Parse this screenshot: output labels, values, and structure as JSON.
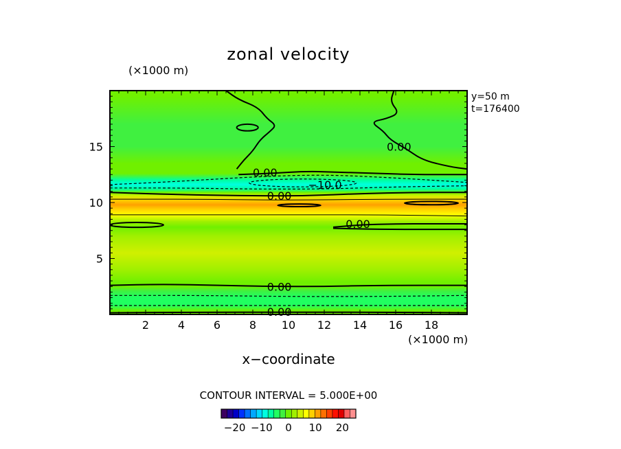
{
  "chart_data": {
    "type": "heatmap",
    "title": "zonal velocity",
    "xlabel": "x−coordinate",
    "x_unit_label": "(×1000 m)",
    "y_unit_label": "(×1000 m)",
    "xlim": [
      0,
      20
    ],
    "ylim": [
      0,
      20
    ],
    "x_ticks": [
      2,
      4,
      6,
      8,
      10,
      12,
      14,
      16,
      18
    ],
    "y_ticks": [
      5,
      10,
      15
    ],
    "annotations": [
      "y=50 m",
      "t=176400"
    ],
    "contour_interval_text": "CONTOUR INTERVAL = 5.000E+00",
    "colorbar": {
      "range": [
        -25,
        25
      ],
      "tick_values": [
        -20,
        -10,
        0,
        10,
        20
      ],
      "tick_labels": [
        "−20",
        "−10",
        "0",
        "10",
        "20"
      ],
      "colors": [
        "#3d0060",
        "#1e0096",
        "#0000c8",
        "#0032ff",
        "#0070ff",
        "#00a8ff",
        "#00d8ff",
        "#00ffe0",
        "#00ffa0",
        "#20ff60",
        "#40f040",
        "#70f000",
        "#a0f000",
        "#d0f000",
        "#ffff00",
        "#ffd000",
        "#ffa000",
        "#ff7000",
        "#ff4000",
        "#ff1000",
        "#e00000",
        "#ff6060",
        "#ff9090"
      ]
    },
    "field_rows": [
      {
        "y": 19.5,
        "value": -1.0
      },
      {
        "y": 17.0,
        "value": -1.5
      },
      {
        "y": 15.0,
        "value": -1.5
      },
      {
        "y": 13.5,
        "value": -1.0
      },
      {
        "y": 12.6,
        "value": 0.5
      },
      {
        "y": 12.0,
        "value": -6.0
      },
      {
        "y": 11.6,
        "value": -9.0
      },
      {
        "y": 11.2,
        "value": -6.0
      },
      {
        "y": 10.9,
        "value": 0.0
      },
      {
        "y": 10.6,
        "value": 5.0
      },
      {
        "y": 10.2,
        "value": 9.0
      },
      {
        "y": 9.8,
        "value": 10.0
      },
      {
        "y": 9.4,
        "value": 8.5
      },
      {
        "y": 8.9,
        "value": 6.0
      },
      {
        "y": 8.3,
        "value": 3.0
      },
      {
        "y": 7.8,
        "value": 0.0
      },
      {
        "y": 7.0,
        "value": 2.5
      },
      {
        "y": 5.5,
        "value": 3.5
      },
      {
        "y": 4.0,
        "value": 3.0
      },
      {
        "y": 2.9,
        "value": 1.0
      },
      {
        "y": 2.5,
        "value": -0.5
      },
      {
        "y": 2.1,
        "value": -2.0
      },
      {
        "y": 1.6,
        "value": -4.0
      },
      {
        "y": 1.2,
        "value": -5.0
      },
      {
        "y": 0.8,
        "value": -3.5
      },
      {
        "y": 0.3,
        "value": 1.0
      }
    ],
    "contours": [
      {
        "value": 0,
        "style": "solid",
        "label": "0.00",
        "label_at": [
          8,
          12.7
        ],
        "points": [
          [
            7.2,
            12.5
          ],
          [
            9,
            12.6
          ],
          [
            11,
            12.8
          ],
          [
            13,
            12.7
          ],
          [
            15,
            12.6
          ],
          [
            17,
            12.5
          ],
          [
            20,
            12.5
          ]
        ]
      },
      {
        "value": 0,
        "style": "solid",
        "label": "0.00",
        "label_at": [
          8.8,
          10.6
        ],
        "points": [
          [
            0,
            10.9
          ],
          [
            4,
            10.7
          ],
          [
            8,
            10.6
          ],
          [
            11,
            10.6
          ],
          [
            14,
            10.8
          ],
          [
            17,
            10.9
          ],
          [
            20,
            10.9
          ]
        ]
      },
      {
        "value": 0,
        "style": "solid",
        "label": "0.00",
        "label_at": [
          13.2,
          8.1
        ],
        "points": [
          [
            12.5,
            7.8
          ],
          [
            14,
            8.0
          ],
          [
            16,
            8.1
          ],
          [
            18,
            8.1
          ],
          [
            20,
            8.1
          ]
        ]
      },
      {
        "value": 0,
        "style": "solid",
        "label": null,
        "label_at": null,
        "points": [
          [
            12.5,
            7.7
          ],
          [
            15,
            7.6
          ],
          [
            18,
            7.6
          ],
          [
            20,
            7.6
          ]
        ]
      },
      {
        "value": 0,
        "style": "solid",
        "label": "0.00",
        "label_at": [
          8.8,
          2.5
        ],
        "points": [
          [
            0,
            2.6
          ],
          [
            3,
            2.7
          ],
          [
            6,
            2.6
          ],
          [
            9,
            2.5
          ],
          [
            12,
            2.5
          ],
          [
            15,
            2.6
          ],
          [
            20,
            2.6
          ]
        ]
      },
      {
        "value": 0,
        "style": "solid",
        "label": "0.00",
        "label_at": [
          8.8,
          0.25
        ],
        "points": [
          [
            0,
            0.15
          ],
          [
            5,
            0.2
          ],
          [
            10,
            0.2
          ],
          [
            15,
            0.2
          ],
          [
            20,
            0.15
          ]
        ]
      },
      {
        "value": 0,
        "style": "solid",
        "label": "0.00",
        "label_at": [
          15.5,
          15.0
        ],
        "points": [
          [
            15.9,
            20
          ],
          [
            15.7,
            19
          ],
          [
            16.2,
            18
          ],
          [
            15.5,
            17.5
          ],
          [
            14.6,
            17.2
          ],
          [
            15.3,
            16.4
          ],
          [
            15.7,
            15.6
          ],
          [
            16.6,
            14.8
          ],
          [
            17.5,
            13.8
          ],
          [
            19,
            13.2
          ],
          [
            20,
            13
          ]
        ]
      },
      {
        "value": 0,
        "style": "solid",
        "label": null,
        "label_at": null,
        "points": [
          [
            6.5,
            20
          ],
          [
            7.2,
            19.2
          ],
          [
            8.3,
            18.5
          ],
          [
            8.8,
            17.5
          ],
          [
            9.3,
            16.9
          ],
          [
            9.0,
            16.4
          ],
          [
            8.4,
            15.6
          ],
          [
            8.0,
            14.6
          ],
          [
            7.5,
            13.8
          ],
          [
            7.1,
            13
          ]
        ]
      },
      {
        "value": -5,
        "style": "dashed",
        "label": null,
        "label_at": null,
        "points": [
          [
            0,
            11.6
          ],
          [
            4,
            11.9
          ],
          [
            8,
            12.3
          ],
          [
            12,
            12.5
          ],
          [
            16,
            12.2
          ],
          [
            20,
            11.8
          ]
        ]
      },
      {
        "value": -5,
        "style": "dashed",
        "label": null,
        "label_at": null,
        "points": [
          [
            0,
            11.3
          ],
          [
            4,
            11.3
          ],
          [
            8,
            11.2
          ],
          [
            12,
            11.2
          ],
          [
            16,
            11.4
          ],
          [
            20,
            11.5
          ]
        ]
      },
      {
        "value": -5,
        "style": "dashed",
        "label": null,
        "label_at": null,
        "points": [
          [
            0,
            1.7
          ],
          [
            5,
            1.7
          ],
          [
            10,
            1.6
          ],
          [
            15,
            1.6
          ],
          [
            20,
            1.7
          ]
        ]
      },
      {
        "value": -5,
        "style": "dashed",
        "label": null,
        "label_at": null,
        "points": [
          [
            0,
            0.8
          ],
          [
            5,
            0.8
          ],
          [
            10,
            0.8
          ],
          [
            15,
            0.8
          ],
          [
            20,
            0.8
          ]
        ]
      },
      {
        "value": 5,
        "style": "solid-thin",
        "label": null,
        "label_at": null,
        "points": [
          [
            0,
            10.3
          ],
          [
            5,
            10.3
          ],
          [
            10,
            10.2
          ],
          [
            15,
            10.3
          ],
          [
            20,
            10.3
          ]
        ]
      },
      {
        "value": 5,
        "style": "solid-thin",
        "label": null,
        "label_at": null,
        "points": [
          [
            0,
            8.9
          ],
          [
            5,
            8.9
          ],
          [
            10,
            8.9
          ],
          [
            15,
            8.9
          ],
          [
            20,
            8.8
          ]
        ]
      }
    ],
    "closed_contours": [
      {
        "value": -10,
        "style": "dashed",
        "label": "−10.0",
        "label_at": [
          11.1,
          11.6
        ],
        "cx": 10.8,
        "cy": 11.75,
        "rx": 3.0,
        "ry": 0.35
      },
      {
        "value": 0,
        "style": "solid",
        "label": null,
        "label_at": null,
        "cx": 10.6,
        "cy": 9.75,
        "rx": 1.2,
        "ry": 0.12
      },
      {
        "value": 0,
        "style": "solid",
        "label": null,
        "label_at": null,
        "cx": 18.0,
        "cy": 9.95,
        "rx": 1.5,
        "ry": 0.15
      },
      {
        "value": 0,
        "style": "solid",
        "label": null,
        "label_at": null,
        "cx": 1.5,
        "cy": 8.0,
        "rx": 1.5,
        "ry": 0.22
      },
      {
        "value": 0,
        "style": "solid",
        "label": null,
        "label_at": null,
        "cx": 7.7,
        "cy": 16.7,
        "rx": 0.6,
        "ry": 0.3
      }
    ]
  }
}
